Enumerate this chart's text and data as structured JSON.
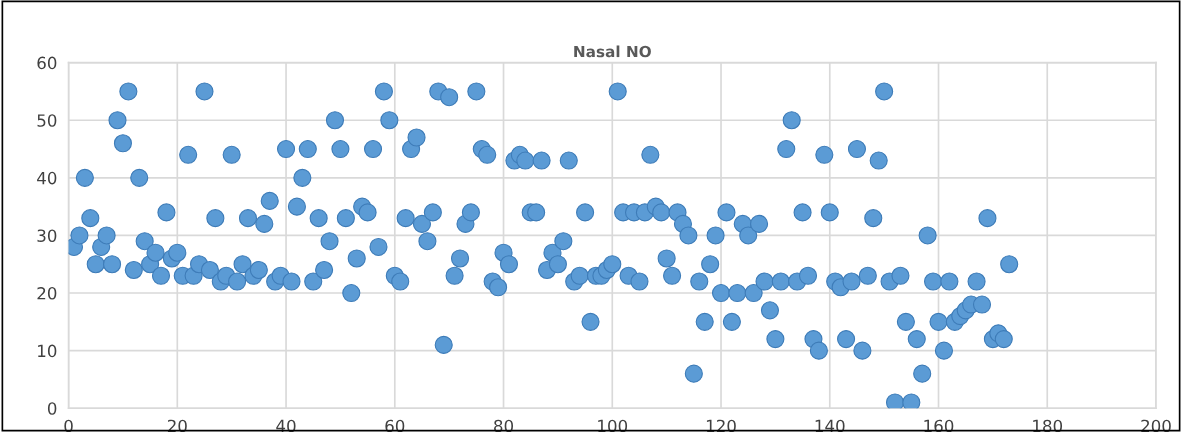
{
  "chart_data": {
    "type": "scatter",
    "title": "Nasal NO",
    "x": [
      1,
      2,
      3,
      4,
      5,
      6,
      7,
      8,
      9,
      10,
      11,
      12,
      13,
      14,
      15,
      16,
      17,
      18,
      19,
      20,
      21,
      22,
      23,
      24,
      25,
      26,
      27,
      28,
      29,
      30,
      31,
      32,
      33,
      34,
      35,
      36,
      37,
      38,
      39,
      40,
      41,
      42,
      43,
      44,
      45,
      46,
      47,
      48,
      49,
      50,
      51,
      52,
      53,
      54,
      55,
      56,
      57,
      58,
      59,
      60,
      61,
      62,
      63,
      64,
      65,
      66,
      67,
      68,
      69,
      70,
      71,
      72,
      73,
      74,
      75,
      76,
      77,
      78,
      79,
      80,
      81,
      82,
      83,
      84,
      85,
      86,
      87,
      88,
      89,
      90,
      91,
      92,
      93,
      94,
      95,
      96,
      97,
      98,
      99,
      100,
      101,
      102,
      103,
      104,
      105,
      106,
      107,
      108,
      109,
      110,
      111,
      112,
      113,
      114,
      115,
      116,
      117,
      118,
      119,
      120,
      121,
      122,
      123,
      124,
      125,
      126,
      127,
      128,
      129,
      130,
      131,
      132,
      133,
      134,
      135,
      136,
      137,
      138,
      139,
      140,
      141,
      142,
      143,
      144,
      145,
      146,
      147,
      148,
      149,
      150,
      151,
      152,
      153,
      154,
      155,
      156,
      157,
      158,
      159,
      160,
      161,
      162,
      163,
      164,
      165,
      166,
      167,
      168,
      169,
      170,
      171,
      172,
      173
    ],
    "series": [
      {
        "color": "#5b9bd5",
        "values": [
          28,
          30,
          40,
          33,
          25,
          28,
          30,
          25,
          50,
          46,
          55,
          24,
          40,
          29,
          25,
          27,
          23,
          34,
          26,
          27,
          23,
          44,
          23,
          25,
          55,
          24,
          33,
          22,
          23,
          44,
          22,
          25,
          33,
          23,
          24,
          32,
          36,
          22,
          23,
          45,
          22,
          35,
          40,
          45,
          22,
          33,
          24,
          29,
          50,
          45,
          33,
          20,
          26,
          35,
          34,
          45,
          28,
          55,
          50,
          23,
          22,
          33,
          45,
          47,
          32,
          29,
          34,
          55,
          11,
          54,
          23,
          26,
          32,
          34,
          55,
          45,
          44,
          22,
          21,
          27,
          25,
          43,
          44,
          43,
          34,
          34,
          43,
          24,
          27,
          25,
          29,
          43,
          22,
          23,
          34,
          15,
          23,
          23,
          24,
          25,
          55,
          34,
          23,
          34,
          22,
          34,
          44,
          35,
          34,
          26,
          23,
          34,
          32,
          30,
          6,
          22,
          15,
          25,
          30,
          20,
          34,
          15,
          20,
          32,
          30,
          20,
          32,
          22,
          17,
          12,
          22,
          45,
          50,
          22,
          34,
          23,
          12,
          10,
          44,
          34,
          22,
          21,
          12,
          22,
          45,
          10,
          23,
          33,
          43,
          55,
          22,
          1,
          23,
          15,
          1,
          12,
          6,
          30,
          22,
          15,
          10,
          22,
          15,
          16,
          17,
          18,
          22,
          18,
          33,
          12,
          13,
          12,
          25
        ]
      }
    ],
    "xlim": [
      0,
      200
    ],
    "xticks": [
      0,
      20,
      40,
      60,
      80,
      100,
      120,
      140,
      160,
      180,
      200
    ],
    "ylim": [
      0,
      60
    ],
    "yticks": [
      0,
      10,
      20,
      30,
      40,
      50,
      60
    ],
    "grid": true,
    "marker": "circle"
  }
}
